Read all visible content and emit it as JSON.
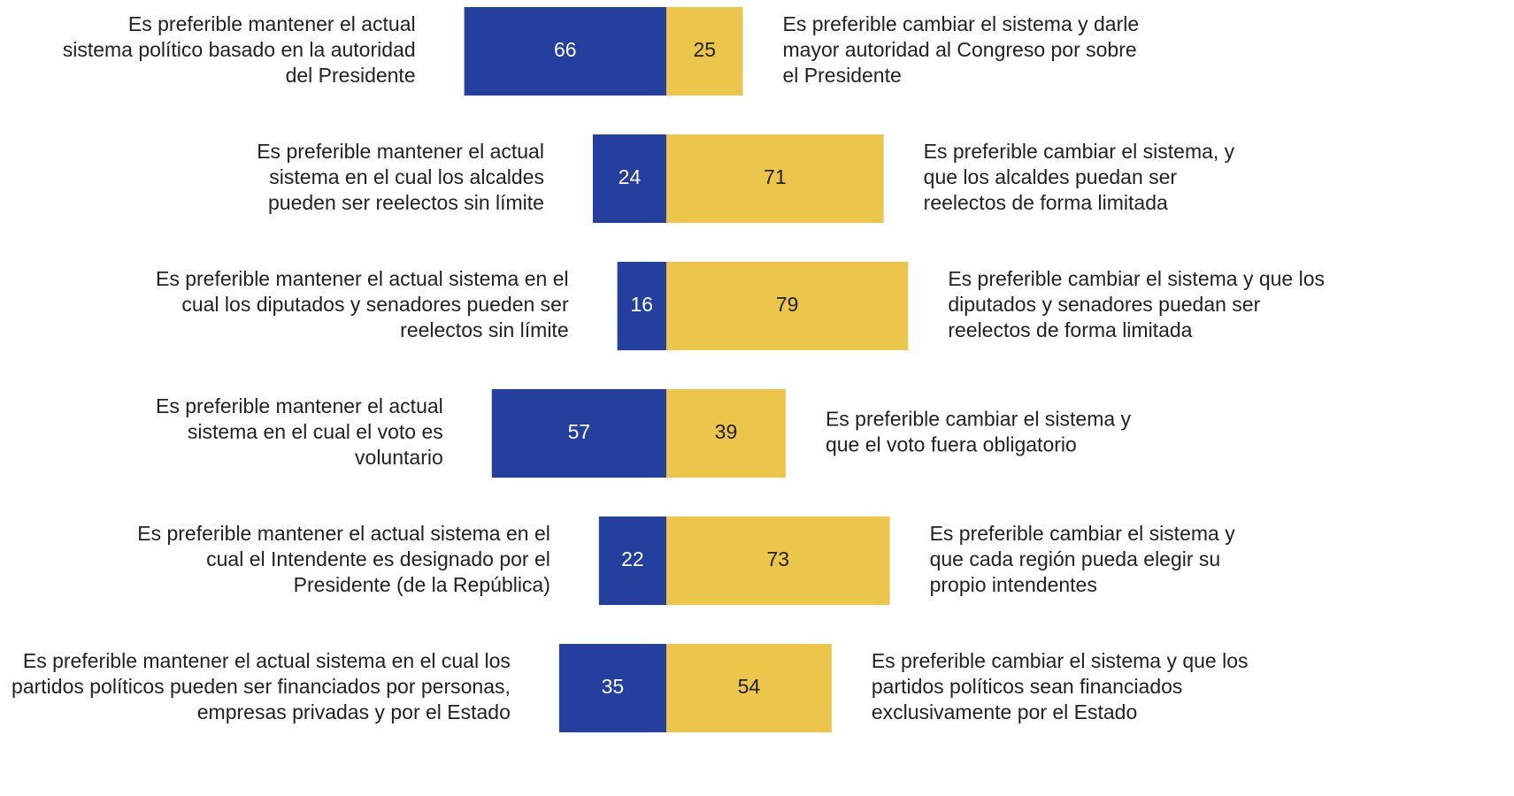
{
  "chart_data": {
    "type": "diverging-bar",
    "left_labels": [
      [
        "Es preferible mantener el actual",
        "sistema político basado en la autoridad",
        "del Presidente"
      ],
      [
        "Es preferible mantener el actual",
        "sistema en el cual los alcaldes",
        "pueden ser reelectos sin límite"
      ],
      [
        "Es preferible mantener el actual sistema en el",
        "cual los diputados y senadores pueden ser",
        "reelectos sin límite"
      ],
      [
        "Es preferible mantener el actual",
        "sistema en el cual el voto es",
        "voluntario"
      ],
      [
        "Es preferible mantener el actual sistema en el",
        "cual el Intendente es designado por el",
        "Presidente (de la República)"
      ],
      [
        "Es preferible mantener el actual sistema en el cual los",
        "partidos políticos pueden ser financiados por personas,",
        "empresas privadas y por el Estado"
      ]
    ],
    "right_labels": [
      [
        "Es preferible cambiar el sistema y darle",
        "mayor autoridad al Congreso por sobre",
        "el Presidente"
      ],
      [
        "Es preferible cambiar el sistema, y",
        "que los alcaldes puedan ser",
        "reelectos de forma limitada"
      ],
      [
        "Es preferible cambiar el sistema y que los",
        "diputados y senadores puedan ser",
        "reelectos de forma limitada"
      ],
      [
        "Es preferible cambiar el sistema y",
        "que el voto fuera obligatorio"
      ],
      [
        "Es preferible cambiar el sistema y",
        "que cada región pueda elegir su",
        "propio intendentes"
      ],
      [
        "Es preferible cambiar el sistema y que los",
        "partidos políticos sean financiados",
        "exclusivamente por el Estado"
      ]
    ],
    "series": [
      {
        "color": "#253f9e",
        "label_color": "#ffffff",
        "values": [
          66,
          24,
          16,
          57,
          22,
          35
        ]
      },
      {
        "color": "#ecc54b",
        "label_color": "#222222",
        "values": [
          25,
          71,
          79,
          39,
          73,
          54
        ]
      }
    ]
  }
}
